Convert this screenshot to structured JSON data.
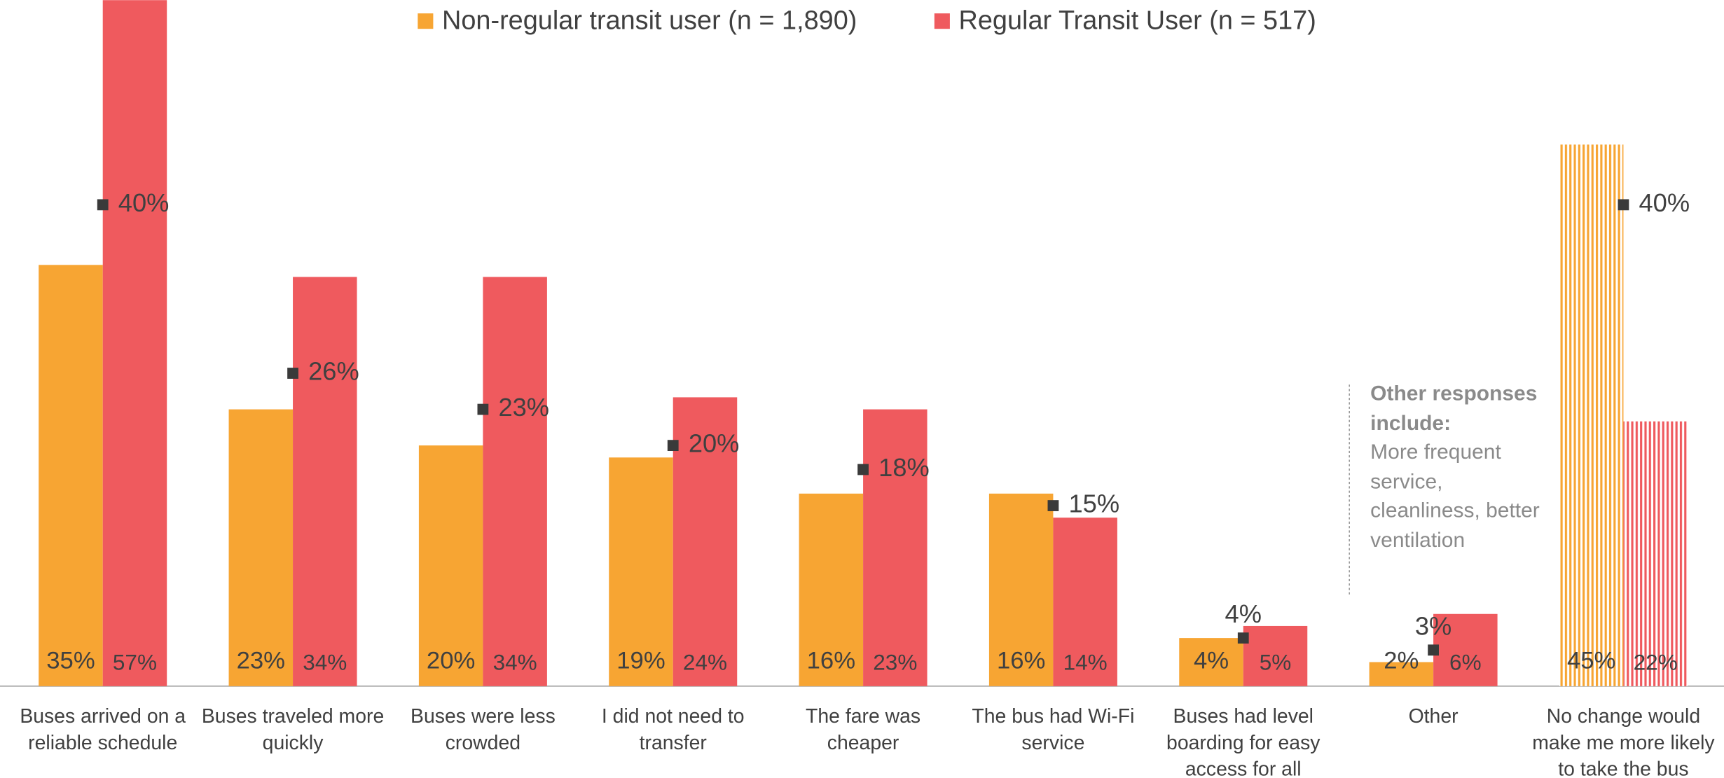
{
  "chart_data": {
    "type": "bar",
    "categories": [
      "Buses arrived on a reliable schedule",
      "Buses traveled more quickly",
      "Buses were less crowded",
      "I did not need to transfer",
      "The fare was cheaper",
      "The bus had Wi-Fi service",
      "Buses had level boarding for easy access for all",
      "Other",
      "No change would make me more likely to take the bus"
    ],
    "series": [
      {
        "name": "Non-regular transit user (n = 1,890)",
        "color": "#F7A533",
        "values": [
          35,
          23,
          20,
          19,
          16,
          16,
          4,
          2,
          45
        ],
        "value_labels": [
          "35%",
          "23%",
          "20%",
          "19%",
          "16%",
          "16%",
          "4%",
          "2%",
          "45%"
        ]
      },
      {
        "name": "Regular Transit User (n = 517)",
        "color": "#EF5A5E",
        "values": [
          57,
          34,
          34,
          24,
          23,
          14,
          5,
          6,
          22
        ],
        "value_labels": [
          "57%",
          "34%",
          "34%",
          "24%",
          "23%",
          "14%",
          "5%",
          "6%",
          "22%"
        ]
      },
      {
        "type": "marker",
        "color": "#3a3a3a",
        "values": [
          40,
          26,
          23,
          20,
          18,
          15,
          4,
          3,
          40
        ],
        "value_labels": [
          "40%",
          "26%",
          "23%",
          "20%",
          "18%",
          "15%",
          "4%",
          "3%",
          "40%"
        ]
      }
    ],
    "hatched_index": 8,
    "ylim": [
      0,
      57
    ],
    "annotation": {
      "title": "Other responses include:",
      "text": "More frequent service, cleanliness, better ventilation"
    }
  }
}
